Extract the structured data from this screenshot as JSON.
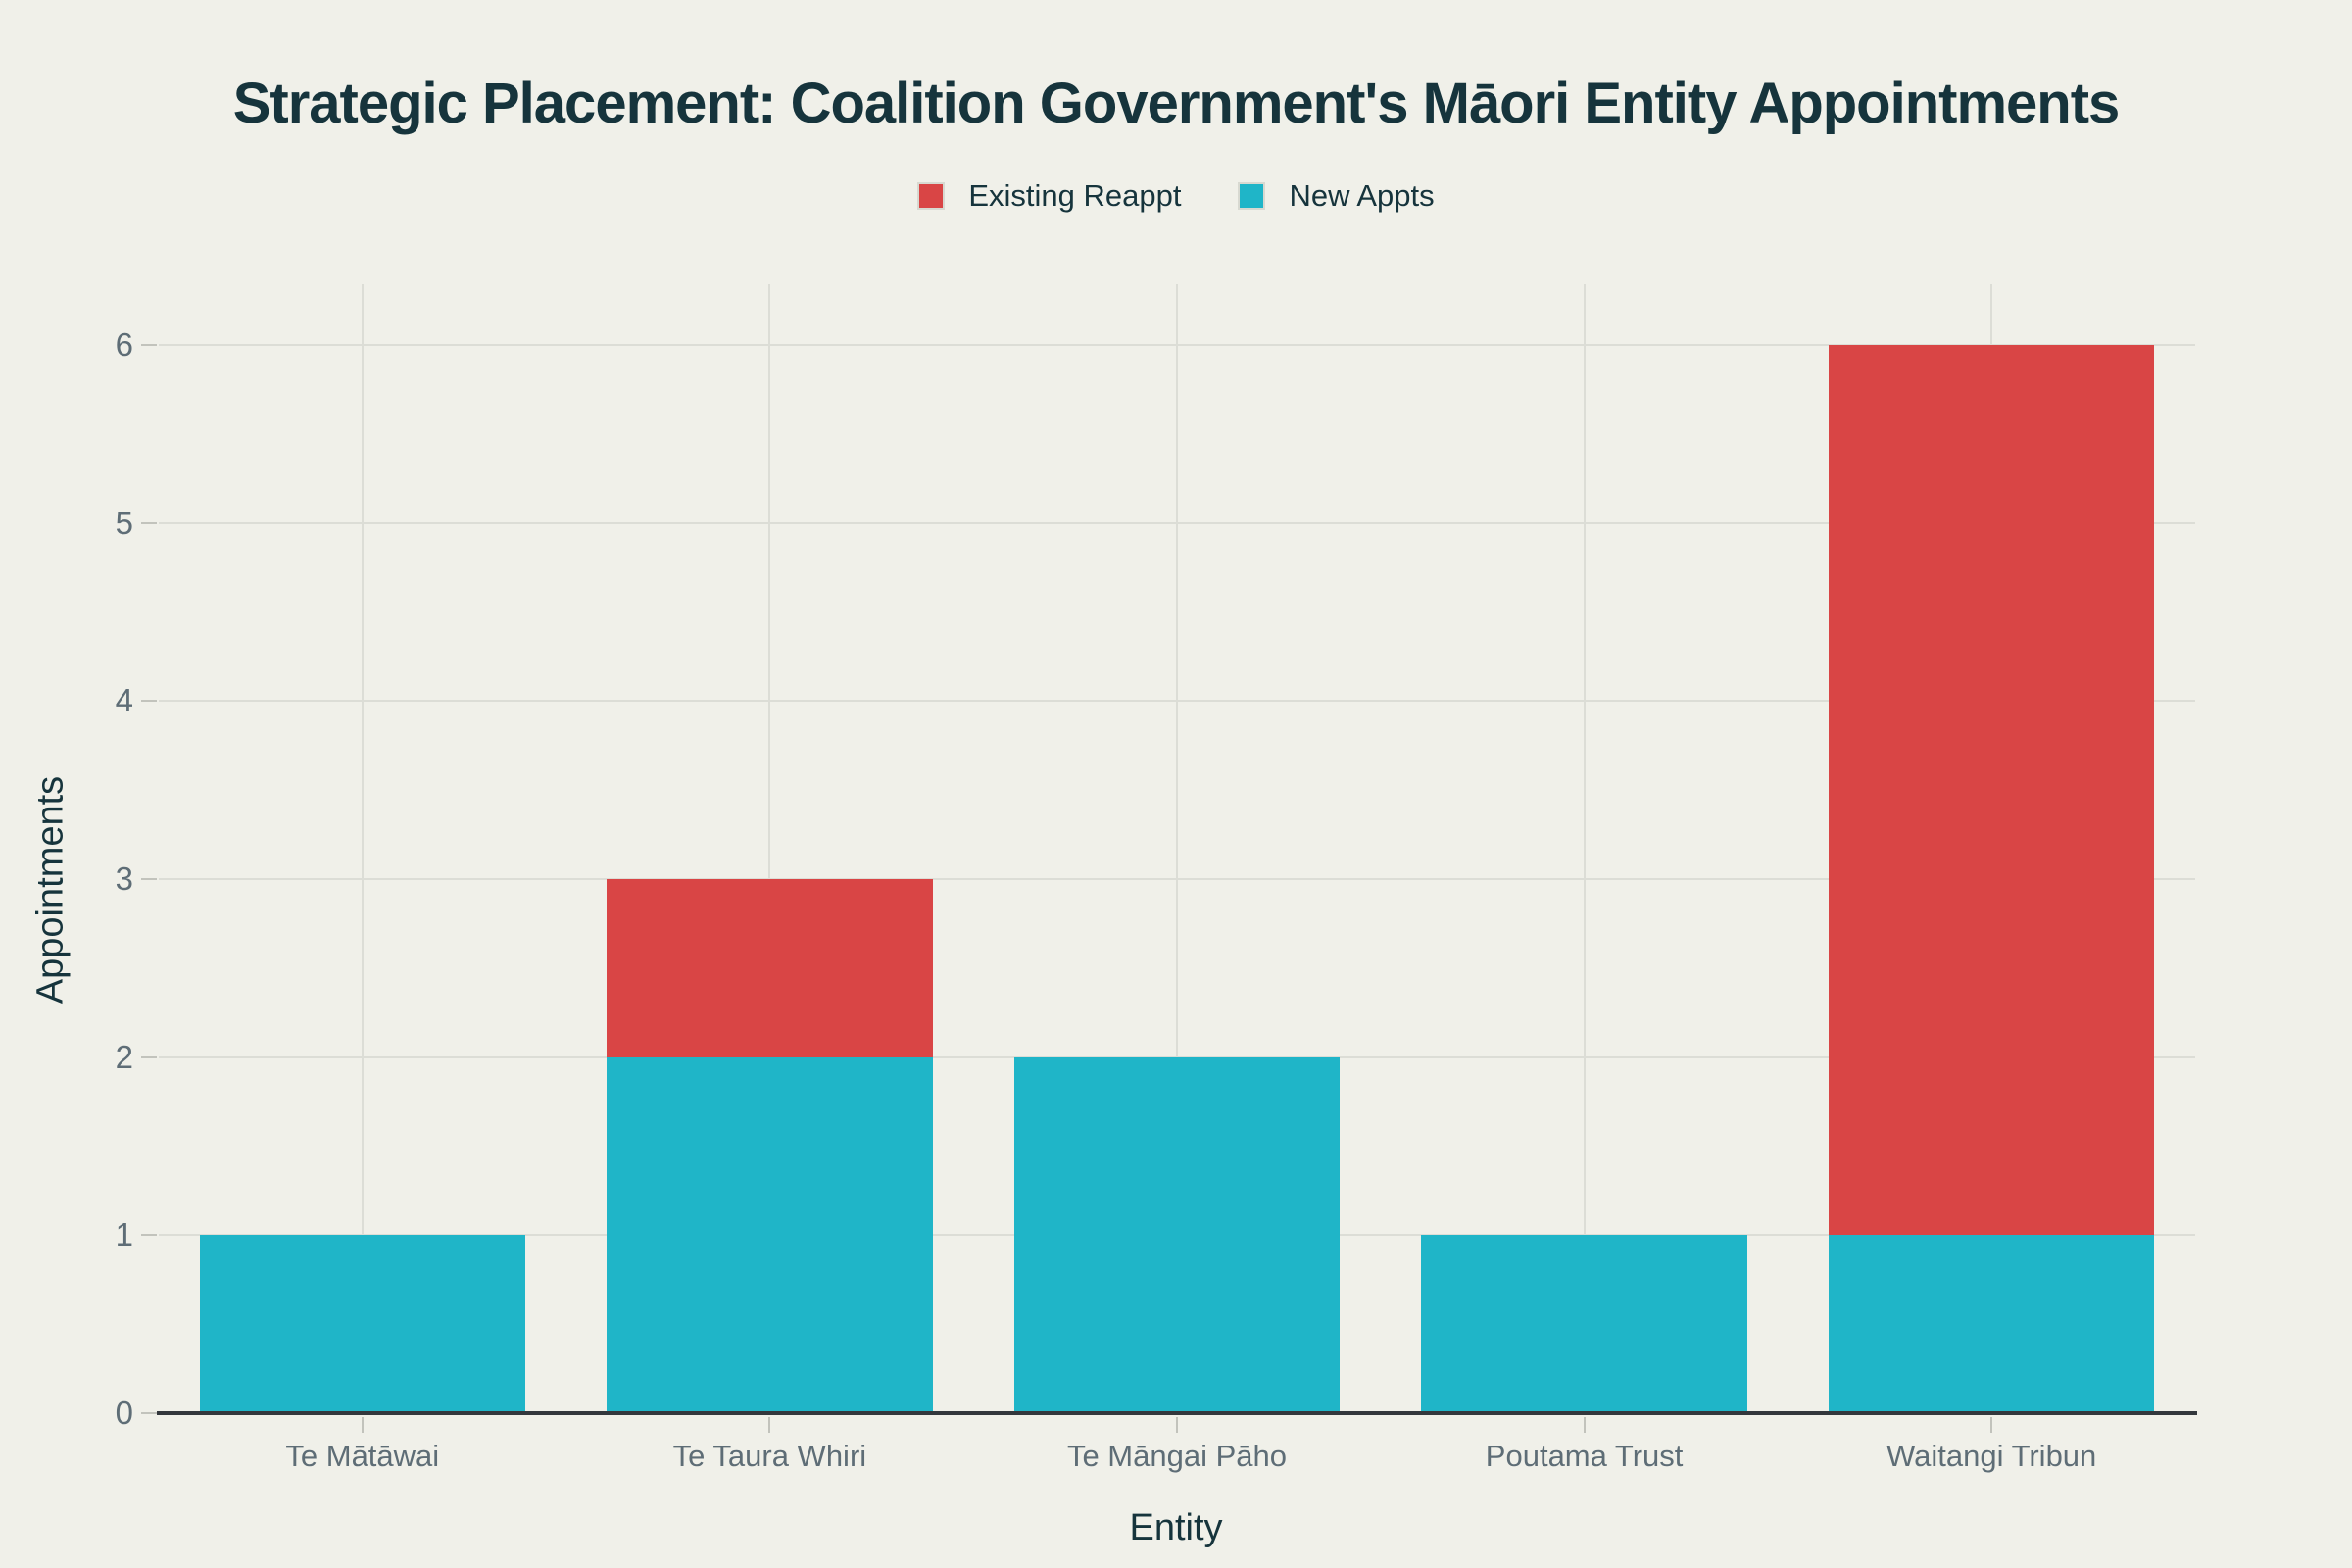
{
  "colors": {
    "background": "#f0f0e9",
    "title_text": "#16343c",
    "tick_label_text": "#5e6d76",
    "gridline": "#dcddd6",
    "axis_line": "#33373c",
    "tick_mark": "#c2c3bc",
    "legend_swatch_border": "#d8d9d1",
    "existing_reappt": "#d94545",
    "new_appts": "#1fb5c8"
  },
  "chart_data": {
    "type": "bar",
    "stacked": true,
    "title": "Strategic Placement: Coalition Government's Māori Entity Appointments",
    "xlabel": "Entity",
    "ylabel": "Appointments",
    "categories": [
      "Te Mātāwai",
      "Te Taura Whiri",
      "Te Māngai Pāho",
      "Poutama Trust",
      "Waitangi Tribun"
    ],
    "series": [
      {
        "name": "Existing Reappt",
        "color": "#d94545",
        "values": [
          0,
          1,
          0,
          0,
          5
        ]
      },
      {
        "name": "New Appts",
        "color": "#1fb5c8",
        "values": [
          1,
          2,
          2,
          1,
          1
        ]
      }
    ],
    "stack_bottom_to_top": [
      1,
      0
    ],
    "stack_totals": [
      1,
      3,
      2,
      1,
      6
    ],
    "yticks": [
      0,
      1,
      2,
      3,
      4,
      5,
      6
    ],
    "ylim": [
      0,
      6.34
    ],
    "grid": true,
    "legend_position": "top-center"
  }
}
